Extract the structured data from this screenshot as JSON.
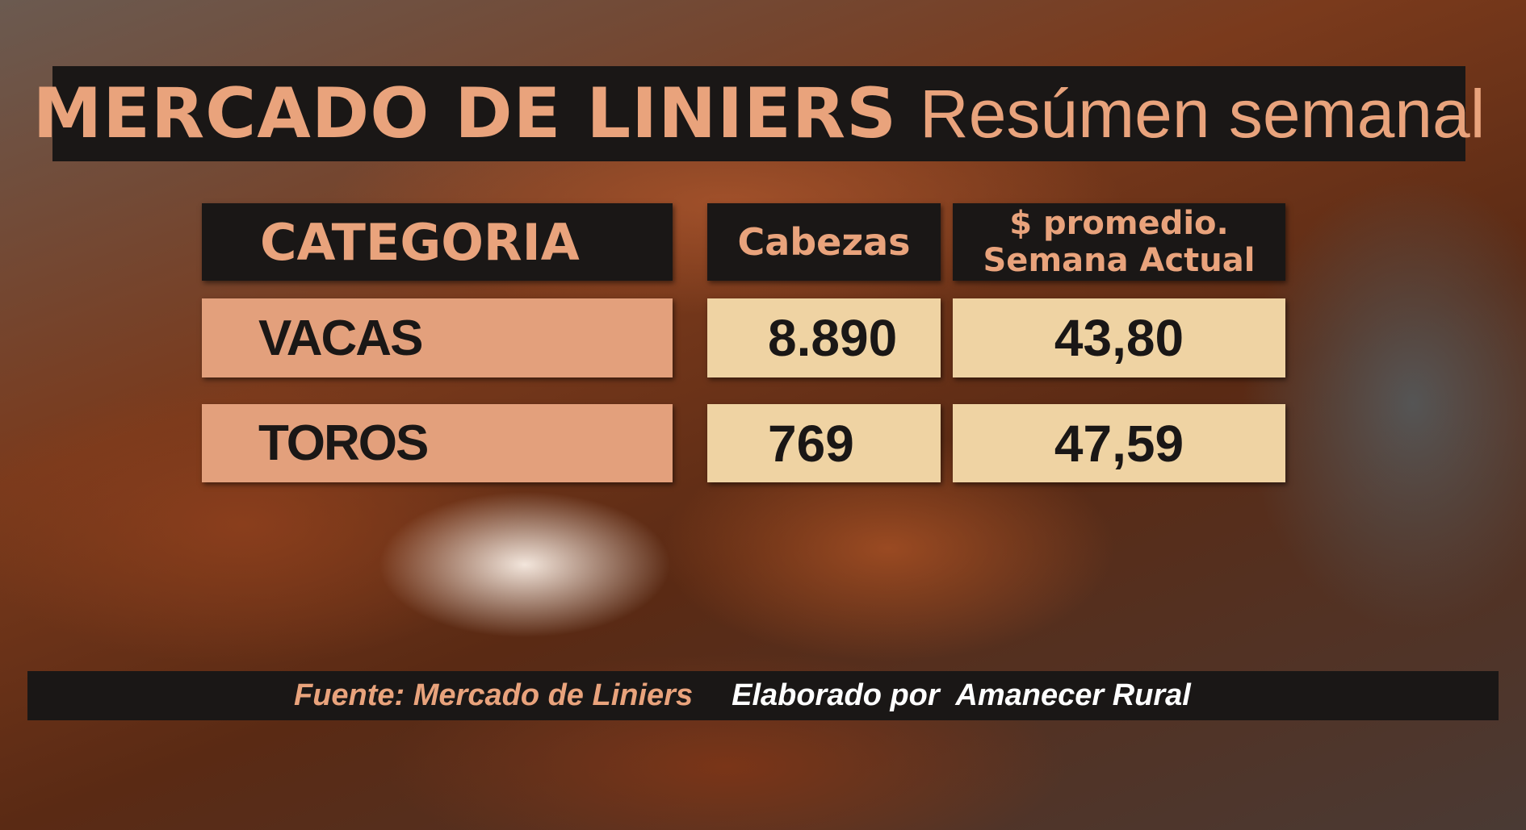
{
  "title": {
    "main": "MERCADO DE LINIERS",
    "sub": "Resúmen semanal"
  },
  "table": {
    "headers": [
      "CATEGORIA",
      "Cabezas",
      "$ promedio.",
      "Semana Actual"
    ],
    "rows": [
      {
        "categoria": "VACAS",
        "cabezas": "8.890",
        "precio": "43,80"
      },
      {
        "categoria": "TOROS",
        "cabezas": "769",
        "precio": "47,59"
      }
    ]
  },
  "footer": {
    "source": "Fuente: Mercado de Liniers",
    "credit": "Elaborado por  Amanecer Rural"
  },
  "colors": {
    "accent": "#e9a37c",
    "dark": "#1a1716",
    "category_fill": "#e3a07c",
    "value_fill": "#efd3a3"
  }
}
